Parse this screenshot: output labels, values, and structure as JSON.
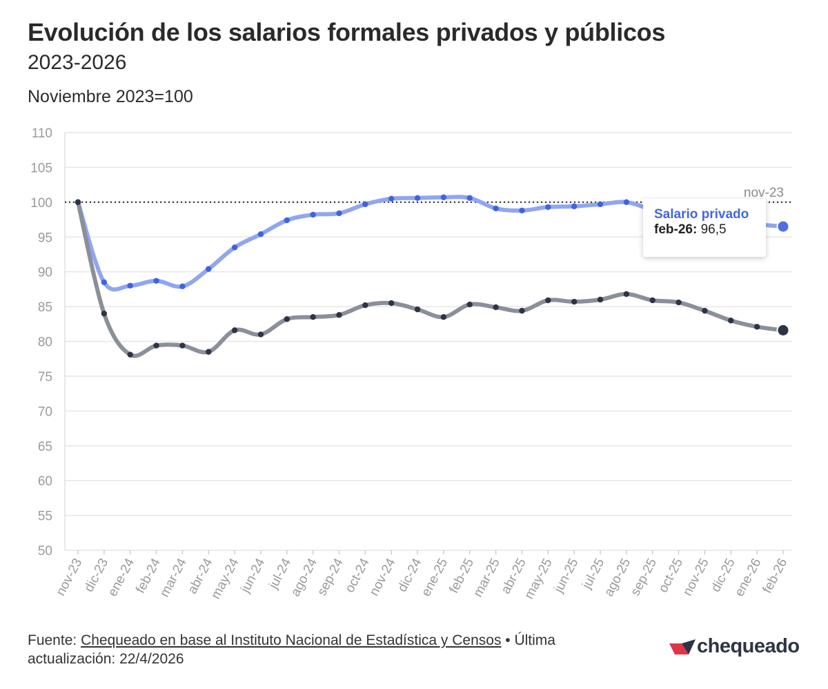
{
  "header": {
    "title": "Evolución de los salarios formales privados y públicos",
    "subtitle": "2023-2026",
    "unit_label": "Noviembre 2023=100"
  },
  "chart_data": {
    "type": "line",
    "x": [
      "nov-23",
      "dic-23",
      "ene-24",
      "feb-24",
      "mar-24",
      "abr-24",
      "may-24",
      "jun-24",
      "jul-24",
      "ago-24",
      "sep-24",
      "oct-24",
      "nov-24",
      "dic-24",
      "ene-25",
      "feb-25",
      "mar-25",
      "abr-25",
      "may-25",
      "jun-25",
      "jul-25",
      "ago-25",
      "sep-25",
      "oct-25",
      "nov-25",
      "dic-25",
      "ene-26",
      "feb-26"
    ],
    "yticks": [
      50,
      55,
      60,
      65,
      70,
      75,
      80,
      85,
      90,
      95,
      100,
      105,
      110
    ],
    "ylim": [
      50,
      110
    ],
    "reference_line": {
      "value": 100,
      "label": "nov-23"
    },
    "series": [
      {
        "name": "Salario privado",
        "color": "#4f6fe0",
        "values": [
          100,
          88.5,
          88.0,
          88.7,
          87.9,
          90.4,
          93.5,
          95.4,
          97.4,
          98.2,
          98.4,
          99.7,
          100.5,
          100.6,
          100.7,
          100.6,
          99.1,
          98.8,
          99.3,
          99.4,
          99.7,
          100.0,
          98.9,
          98.0,
          97.4,
          97.0,
          96.8,
          96.5
        ]
      },
      {
        "values": [
          100,
          84.0,
          78.1,
          79.4,
          79.4,
          78.5,
          81.6,
          81.0,
          83.2,
          83.5,
          83.8,
          85.2,
          85.5,
          84.6,
          83.5,
          85.3,
          84.9,
          84.4,
          85.9,
          85.7,
          86.0,
          86.8,
          85.9,
          85.6,
          84.4,
          83.0,
          82.1,
          81.6
        ],
        "color": "#2d3446"
      }
    ],
    "grid": true,
    "tooltip": {
      "series": "Salario privado",
      "x": "feb-26:",
      "value": "96,5"
    }
  },
  "footer": {
    "source_prefix": "Fuente: ",
    "source_link": "Chequeado en base al Instituto Nacional de Estadística y Censos",
    "update_text": " • Última actualización: 22/4/2026"
  },
  "logo": {
    "text": "chequeado",
    "color_mark": "#e0344a",
    "color_text": "#2d3446"
  }
}
